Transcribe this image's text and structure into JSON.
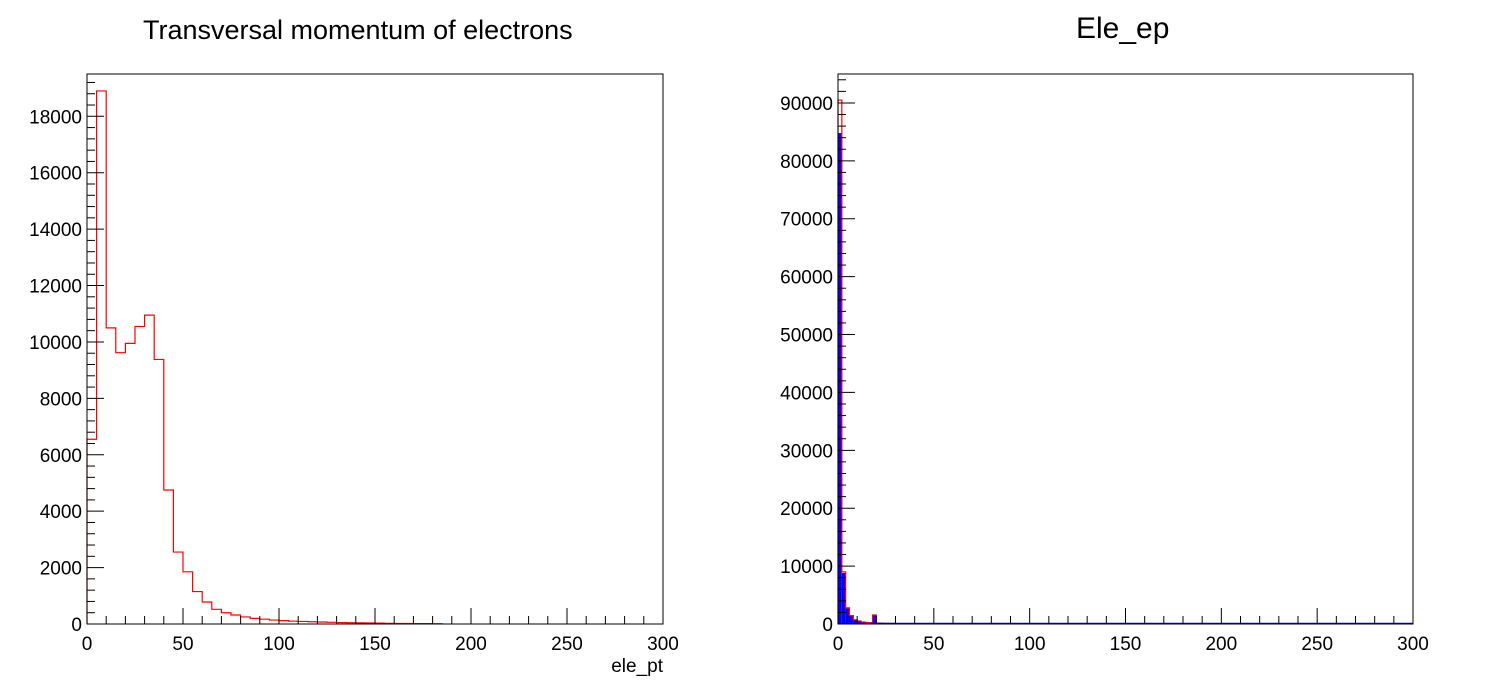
{
  "chart_data": [
    {
      "type": "bar",
      "title": "Transversal momentum of electrons",
      "xlabel": "ele_pt",
      "ylabel": "",
      "xlim": [
        0,
        300
      ],
      "ylim": [
        0,
        19500
      ],
      "x_ticks": [
        0,
        50,
        100,
        150,
        200,
        250,
        300
      ],
      "y_ticks": [
        0,
        2000,
        4000,
        6000,
        8000,
        10000,
        12000,
        14000,
        16000,
        18000
      ],
      "line_color": "#ff0000",
      "fill_color": "",
      "bin_width": 5,
      "bin_start": 0,
      "values": [
        6550,
        18900,
        10500,
        9620,
        9950,
        10550,
        10950,
        9380,
        4750,
        2550,
        1850,
        1150,
        780,
        520,
        400,
        320,
        250,
        200,
        170,
        140,
        120,
        100,
        90,
        80,
        70,
        60,
        50,
        45,
        40,
        35,
        30,
        25,
        20,
        18,
        15,
        12,
        10
      ],
      "grid": false,
      "legend": "none"
    },
    {
      "type": "bar",
      "title": "Ele_ep",
      "xlabel": "",
      "ylabel": "",
      "xlim": [
        0,
        300
      ],
      "ylim": [
        0,
        95000
      ],
      "x_ticks": [
        0,
        50,
        100,
        150,
        200,
        250,
        300
      ],
      "y_ticks": [
        0,
        10000,
        20000,
        30000,
        40000,
        50000,
        60000,
        70000,
        80000,
        90000
      ],
      "line_color": "#ff0000",
      "fill_color": "#0000ff",
      "bin_width": 2,
      "bin_start": 0,
      "values": [
        84800,
        8800,
        2700,
        1400,
        700,
        500,
        350,
        250,
        200,
        1500,
        150,
        120,
        100,
        90,
        80
      ],
      "outline_values": [
        90500,
        9000,
        2800,
        1450,
        720,
        520,
        360,
        260,
        210,
        1550,
        155,
        125,
        105,
        95,
        85
      ],
      "grid": false,
      "legend": "none"
    }
  ]
}
